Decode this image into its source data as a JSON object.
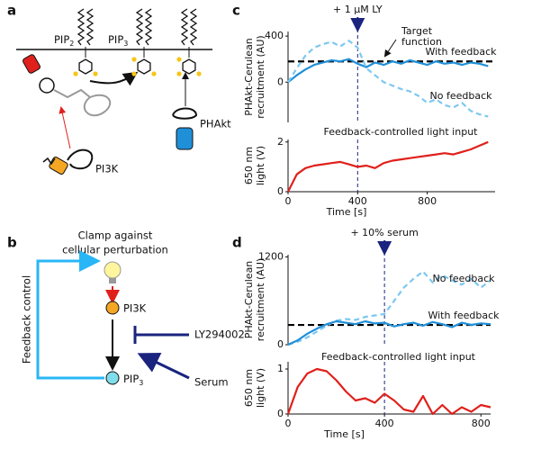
{
  "panel_labels": [
    "a",
    "b",
    "c",
    "d"
  ],
  "diagram_a": {
    "pip2": {
      "text": "PIP",
      "sub": "2"
    },
    "pip3": {
      "text": "PIP",
      "sub": "3"
    },
    "phakt": "PHAkt",
    "pi3k": "PI3K"
  },
  "diagram_b": {
    "title": [
      "Clamp against",
      "cellular perturbation"
    ],
    "pi3k": "PI3K",
    "ly": "LY294002",
    "serum": "Serum",
    "pip3": {
      "text": "PIP",
      "sub": "3"
    },
    "feedback": "Feedback control"
  },
  "chart_data": [
    {
      "type": "line",
      "ylabel": [
        "PHAkt-Cerulean",
        "recruitment (AU)"
      ],
      "x": [
        0,
        50,
        100,
        150,
        200,
        250,
        300,
        350,
        400,
        450,
        500,
        550,
        600,
        650,
        700,
        750,
        800,
        850,
        900,
        950,
        1000,
        1050,
        1100,
        1150
      ],
      "xlim": [
        0,
        1190
      ],
      "ylim": [
        -350,
        440
      ],
      "yticks": [
        0,
        400
      ],
      "series": [
        {
          "name": "With feedback",
          "color": "#1f8fd8",
          "style": "solid",
          "values": [
            0,
            60,
            110,
            150,
            170,
            190,
            180,
            200,
            160,
            130,
            170,
            150,
            180,
            160,
            190,
            170,
            150,
            180,
            160,
            170,
            150,
            170,
            160,
            140
          ]
        },
        {
          "name": "No feedback",
          "color": "#7cc8f0",
          "style": "dashed",
          "values": [
            0,
            120,
            230,
            300,
            330,
            350,
            310,
            360,
            300,
            120,
            60,
            0,
            -30,
            -60,
            -80,
            -120,
            -180,
            -150,
            -200,
            -220,
            -180,
            -250,
            -280,
            -300
          ]
        }
      ],
      "hline": {
        "value": 180,
        "color": "#000000",
        "label": [
          "Target",
          "function"
        ]
      },
      "vline": {
        "value": 400,
        "color": "#1a237e",
        "label": "+ 1 µM LY"
      }
    },
    {
      "type": "line",
      "title": "Feedback-controlled light input",
      "ylabel": [
        "650 nm",
        "light (V)"
      ],
      "xlabel": "Time [s]",
      "x": [
        0,
        50,
        100,
        150,
        200,
        250,
        300,
        350,
        400,
        450,
        500,
        550,
        600,
        650,
        700,
        750,
        800,
        850,
        900,
        950,
        1000,
        1050,
        1100,
        1150
      ],
      "xlim": [
        0,
        1190
      ],
      "ylim": [
        0,
        2.1
      ],
      "xticks": [
        0,
        400,
        800
      ],
      "yticks": [
        0,
        2
      ],
      "series": [
        {
          "color": "#e0201b",
          "style": "solid",
          "values": [
            0,
            0.7,
            0.95,
            1.05,
            1.1,
            1.15,
            1.2,
            1.1,
            1.0,
            1.05,
            0.95,
            1.15,
            1.25,
            1.3,
            1.35,
            1.4,
            1.45,
            1.5,
            1.55,
            1.5,
            1.6,
            1.7,
            1.85,
            2.0
          ]
        }
      ],
      "vline": {
        "value": 400,
        "color": "#1a237e"
      }
    },
    {
      "type": "line",
      "ylabel": [
        "PHAkt-Cerulean",
        "recruitment (AU)"
      ],
      "x": [
        0,
        40,
        80,
        120,
        160,
        200,
        240,
        280,
        320,
        360,
        400,
        440,
        480,
        520,
        560,
        600,
        640,
        680,
        720,
        760,
        800,
        840
      ],
      "xlim": [
        0,
        840
      ],
      "ylim": [
        0,
        1230
      ],
      "yticks": [
        0,
        1200
      ],
      "series": [
        {
          "name": "No feedback",
          "color": "#7cc8f0",
          "style": "dashed",
          "values": [
            0,
            40,
            100,
            180,
            260,
            330,
            350,
            340,
            380,
            400,
            420,
            600,
            780,
            900,
            1000,
            850,
            950,
            880,
            820,
            900,
            780,
            880
          ]
        },
        {
          "name": "With feedback",
          "color": "#1f8fd8",
          "style": "solid",
          "values": [
            0,
            60,
            150,
            220,
            280,
            320,
            300,
            280,
            320,
            290,
            300,
            250,
            280,
            300,
            260,
            310,
            280,
            240,
            300,
            270,
            290,
            280
          ]
        }
      ],
      "hline": {
        "value": 270,
        "color": "#000000"
      },
      "vline": {
        "value": 400,
        "color": "#1a237e",
        "label": "+ 10% serum"
      }
    },
    {
      "type": "line",
      "title": "Feedback-controlled light input",
      "ylabel": [
        "650 nm",
        "light (V)"
      ],
      "xlabel": "Time [s]",
      "x": [
        0,
        40,
        80,
        120,
        160,
        200,
        240,
        280,
        320,
        360,
        400,
        440,
        480,
        520,
        560,
        600,
        640,
        680,
        720,
        760,
        800,
        840
      ],
      "xlim": [
        0,
        840
      ],
      "ylim": [
        0,
        1.16
      ],
      "xticks": [
        0,
        400,
        800
      ],
      "yticks": [
        0,
        1
      ],
      "series": [
        {
          "color": "#e0201b",
          "style": "solid",
          "values": [
            0,
            0.6,
            0.9,
            1.0,
            0.95,
            0.75,
            0.5,
            0.3,
            0.35,
            0.25,
            0.45,
            0.3,
            0.1,
            0.05,
            0.4,
            0.0,
            0.2,
            0.0,
            0.15,
            0.05,
            0.2,
            0.15
          ]
        }
      ],
      "vline": {
        "value": 400,
        "color": "#1a237e"
      }
    }
  ]
}
